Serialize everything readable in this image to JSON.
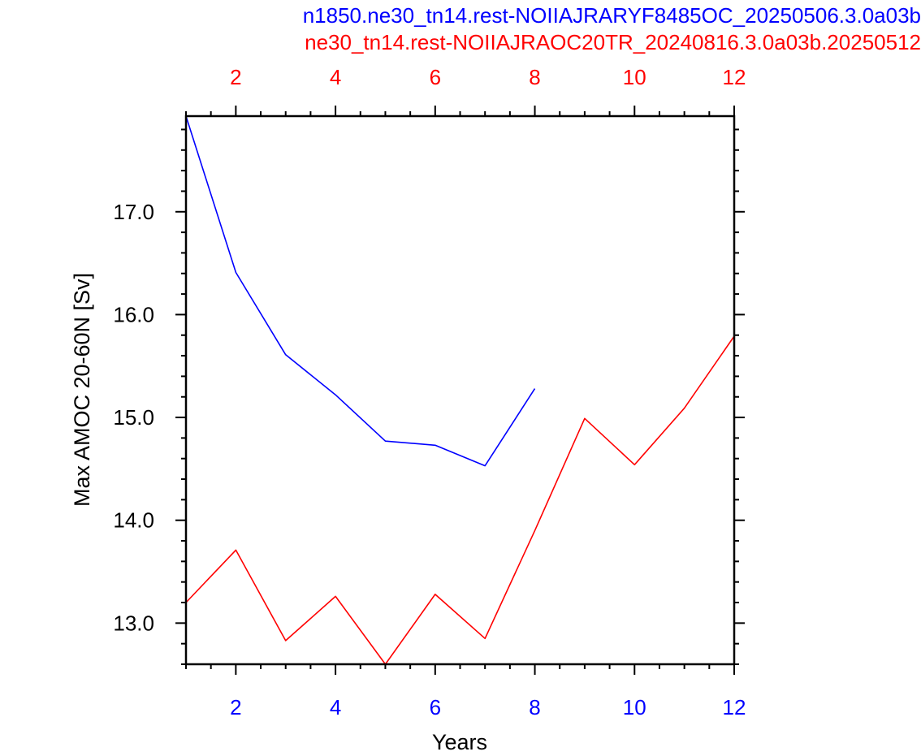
{
  "chart_data": {
    "type": "line",
    "titles": [
      {
        "text": "n1850.ne30_tn14.rest-NOIIAJRARYF8485OC_20250506.3.0a03b",
        "color": "#0000ff"
      },
      {
        "text": "ne30_tn14.rest-NOIIAJRAOC20TR_20240816.3.0a03b.20250512",
        "color": "#ff0000"
      }
    ],
    "xlabel": "Years",
    "ylabel": "Max AMOC 20-60N [Sv]",
    "xlim": [
      1,
      12
    ],
    "ylim": [
      12.6,
      17.93
    ],
    "x_ticks": [
      2,
      4,
      6,
      8,
      10,
      12
    ],
    "y_ticks": [
      13.0,
      14.0,
      15.0,
      16.0,
      17.0
    ],
    "y_tick_labels": [
      "13.0",
      "14.0",
      "15.0",
      "16.0",
      "17.0"
    ],
    "bottom_axis_color": "#0000ff",
    "top_axis_color": "#ff0000",
    "grid": false,
    "legend": "none",
    "series": [
      {
        "color": "#0000ff",
        "x": [
          1,
          2,
          3,
          4,
          5,
          6,
          7,
          8
        ],
        "values": [
          17.93,
          16.41,
          15.61,
          15.22,
          14.77,
          14.73,
          14.53,
          15.28
        ]
      },
      {
        "color": "#ff0000",
        "x": [
          1,
          2,
          3,
          4,
          5,
          6,
          7,
          8,
          9,
          10,
          11,
          12
        ],
        "values": [
          13.2,
          13.71,
          12.83,
          13.26,
          12.6,
          13.28,
          12.85,
          13.9,
          14.99,
          14.54,
          15.09,
          15.79
        ]
      }
    ]
  }
}
